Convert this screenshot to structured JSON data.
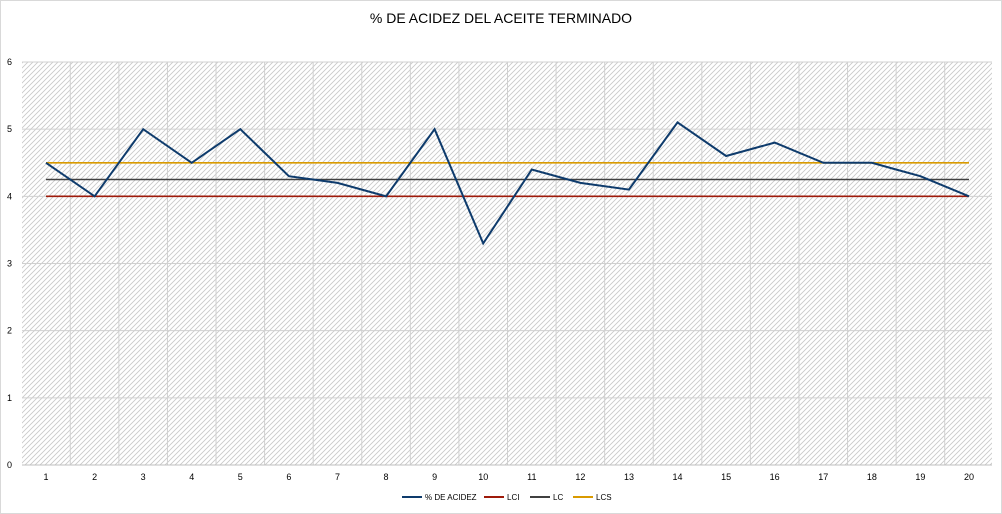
{
  "chart_data": {
    "type": "line",
    "title": "% DE ACIDEZ DEL ACEITE TERMINADO",
    "xlabel": "",
    "ylabel": "",
    "categories": [
      "1",
      "2",
      "3",
      "4",
      "5",
      "6",
      "7",
      "8",
      "9",
      "10",
      "11",
      "12",
      "13",
      "14",
      "15",
      "16",
      "17",
      "18",
      "19",
      "20"
    ],
    "ylim": [
      0,
      6
    ],
    "yticks": [
      "0",
      "1",
      "2",
      "3",
      "4",
      "5",
      "6"
    ],
    "grid": true,
    "legend_position": "bottom",
    "series": [
      {
        "name": "% DE ACIDEZ",
        "color": "#0e3b6c",
        "values": [
          4.5,
          4.0,
          5.0,
          4.5,
          5.0,
          4.3,
          4.2,
          4.0,
          5.0,
          3.3,
          4.4,
          4.2,
          4.1,
          5.1,
          4.6,
          4.8,
          4.5,
          4.5,
          4.3,
          4.0
        ]
      },
      {
        "name": "LCI",
        "color": "#9e1a0a",
        "values": [
          4,
          4,
          4,
          4,
          4,
          4,
          4,
          4,
          4,
          4,
          4,
          4,
          4,
          4,
          4,
          4,
          4,
          4,
          4,
          4
        ]
      },
      {
        "name": "LC",
        "color": "#404040",
        "values": [
          4.25,
          4.25,
          4.25,
          4.25,
          4.25,
          4.25,
          4.25,
          4.25,
          4.25,
          4.25,
          4.25,
          4.25,
          4.25,
          4.25,
          4.25,
          4.25,
          4.25,
          4.25,
          4.25,
          4.25
        ]
      },
      {
        "name": "LCS",
        "color": "#d99a00",
        "values": [
          4.5,
          4.5,
          4.5,
          4.5,
          4.5,
          4.5,
          4.5,
          4.5,
          4.5,
          4.5,
          4.5,
          4.5,
          4.5,
          4.5,
          4.5,
          4.5,
          4.5,
          4.5,
          4.5,
          4.5
        ]
      }
    ]
  }
}
